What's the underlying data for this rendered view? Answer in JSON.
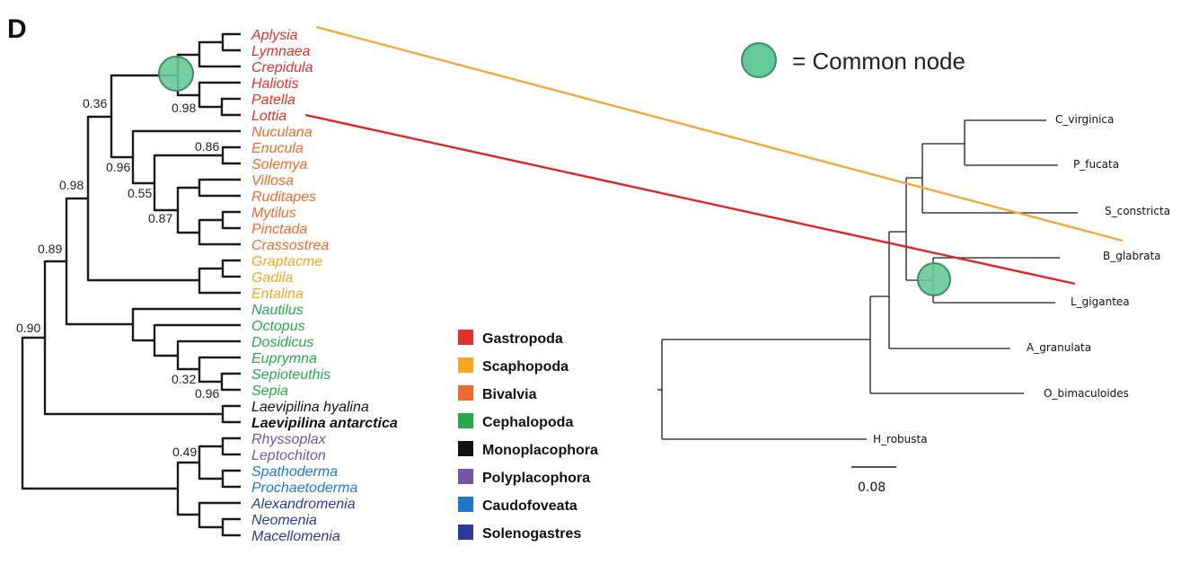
{
  "panel_label": "D",
  "common_node_label": "= Common node",
  "colors": {
    "node": "#66C99A",
    "node_stroke": "#3D8F5E",
    "link_aplysia": "#F2A93B",
    "link_lottia": "#E02424"
  },
  "left_tree": {
    "taxa": [
      {
        "name": "Aplysia",
        "group": "Gastropoda"
      },
      {
        "name": "Lymnaea",
        "group": "Gastropoda"
      },
      {
        "name": "Crepidula",
        "group": "Gastropoda"
      },
      {
        "name": "Haliotis",
        "group": "Gastropoda"
      },
      {
        "name": "Patella",
        "group": "Gastropoda"
      },
      {
        "name": "Lottia",
        "group": "Gastropoda"
      },
      {
        "name": "Nuculana",
        "group": "Bivalvia"
      },
      {
        "name": "Enucula",
        "group": "Bivalvia"
      },
      {
        "name": "Solemya",
        "group": "Bivalvia"
      },
      {
        "name": "Villosa",
        "group": "Bivalvia"
      },
      {
        "name": "Ruditapes",
        "group": "Bivalvia"
      },
      {
        "name": "Mytilus",
        "group": "Bivalvia"
      },
      {
        "name": "Pinctada",
        "group": "Bivalvia"
      },
      {
        "name": "Crassostrea",
        "group": "Bivalvia"
      },
      {
        "name": "Graptacme",
        "group": "Scaphopoda"
      },
      {
        "name": "Gadila",
        "group": "Scaphopoda"
      },
      {
        "name": "Entalina",
        "group": "Scaphopoda"
      },
      {
        "name": "Nautilus",
        "group": "Cephalopoda"
      },
      {
        "name": "Octopus",
        "group": "Cephalopoda"
      },
      {
        "name": "Dosidicus",
        "group": "Cephalopoda"
      },
      {
        "name": "Euprymna",
        "group": "Cephalopoda"
      },
      {
        "name": "Sepioteuthis",
        "group": "Cephalopoda"
      },
      {
        "name": "Sepia",
        "group": "Cephalopoda"
      },
      {
        "name": "Laevipilina hyalina",
        "group": "Monoplacophora"
      },
      {
        "name": "Laevipilina antarctica",
        "group": "Monoplacophora",
        "bold": true
      },
      {
        "name": "Rhyssoplax",
        "group": "Polyplacophora"
      },
      {
        "name": "Leptochiton",
        "group": "Polyplacophora"
      },
      {
        "name": "Spathoderma",
        "group": "Caudofoveata"
      },
      {
        "name": "Prochaetoderma",
        "group": "Caudofoveata"
      },
      {
        "name": "Alexandromenia",
        "group": "Solenogastres"
      },
      {
        "name": "Neomenia",
        "group": "Solenogastres"
      },
      {
        "name": "Macellomenia",
        "group": "Solenogastres"
      }
    ],
    "support_values": [
      "0.36",
      "0.98",
      "0.96",
      "0.86",
      "0.55",
      "0.87",
      "0.98",
      "0.89",
      "0.90",
      "0.32",
      "0.96",
      "0.49"
    ]
  },
  "legend": [
    {
      "label": "Gastropoda",
      "color": "#E0312B"
    },
    {
      "label": "Scaphopoda",
      "color": "#F5A623"
    },
    {
      "label": "Bivalvia",
      "color": "#EE6A2C"
    },
    {
      "label": "Cephalopoda",
      "color": "#27A84A"
    },
    {
      "label": "Monoplacophora",
      "color": "#111111"
    },
    {
      "label": "Polyplacophora",
      "color": "#7453A8"
    },
    {
      "label": "Caudofoveata",
      "color": "#1F78C8"
    },
    {
      "label": "Solenogastres",
      "color": "#2E3A9A"
    }
  ],
  "right_tree": {
    "taxa": [
      "C_virginica",
      "P_fucata",
      "S_constricta",
      "B_glabrata",
      "L_gigantea",
      "A_granulata",
      "O_bimaculoides",
      "H_robusta"
    ],
    "scale_label": "0.08"
  }
}
